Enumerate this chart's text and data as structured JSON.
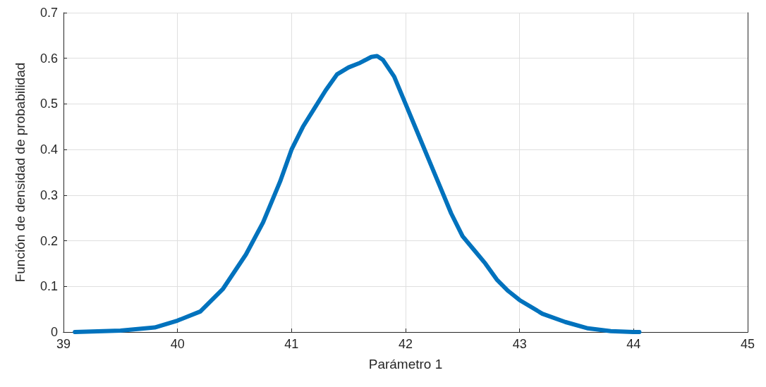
{
  "chart_data": {
    "type": "line",
    "xlabel": "Parámetro 1",
    "ylabel": "Función de densidad de probabilidad",
    "xlim": [
      39,
      45
    ],
    "xticks": [
      39,
      40,
      41,
      42,
      43,
      44,
      45
    ],
    "ylim": [
      0,
      0.7
    ],
    "yticks": [
      0,
      0.1,
      0.2,
      0.3,
      0.4,
      0.5,
      0.6,
      0.7
    ],
    "grid": true,
    "marker": "none",
    "line_style": "solid",
    "series": [
      {
        "color": "#0072bd",
        "x": [
          39.1,
          39.5,
          39.8,
          40.0,
          40.2,
          40.4,
          40.6,
          40.75,
          40.9,
          41.0,
          41.1,
          41.2,
          41.3,
          41.4,
          41.5,
          41.6,
          41.7,
          41.75,
          41.8,
          41.9,
          42.0,
          42.1,
          42.2,
          42.3,
          42.4,
          42.5,
          42.6,
          42.7,
          42.8,
          42.9,
          43.0,
          43.2,
          43.4,
          43.6,
          43.8,
          44.0,
          44.05
        ],
        "values": [
          0,
          0.003,
          0.01,
          0.025,
          0.045,
          0.095,
          0.17,
          0.24,
          0.33,
          0.4,
          0.45,
          0.49,
          0.53,
          0.565,
          0.58,
          0.59,
          0.603,
          0.605,
          0.597,
          0.56,
          0.5,
          0.44,
          0.38,
          0.32,
          0.26,
          0.21,
          0.18,
          0.15,
          0.115,
          0.09,
          0.07,
          0.04,
          0.022,
          0.008,
          0.002,
          0,
          0
        ]
      }
    ]
  }
}
